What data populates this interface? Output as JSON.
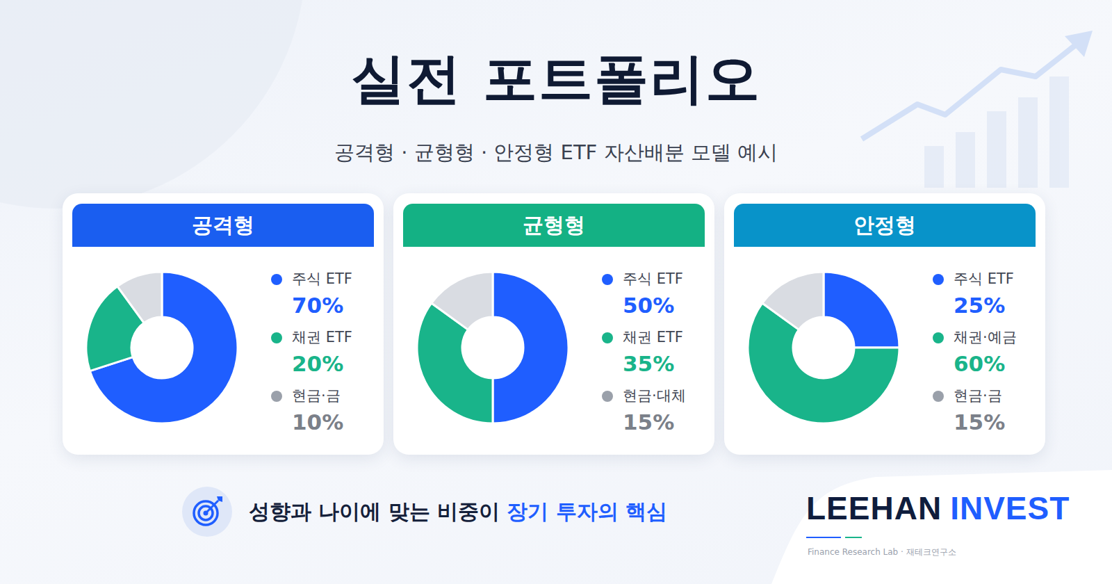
{
  "title": "실전 포트폴리오",
  "subtitle": "공격형 · 균형형 · 안정형 ETF 자산배분 모델 예시",
  "chart_data": [
    {
      "type": "pie",
      "title": "공격형",
      "categories": [
        "주식 ETF",
        "채권 ETF",
        "현금·금"
      ],
      "values": [
        70,
        20,
        10
      ],
      "value_labels": [
        "70%",
        "20%",
        "10%"
      ],
      "colors": [
        "#1f5eff",
        "#19b48a",
        "#d9dce2"
      ],
      "legend": "right"
    },
    {
      "type": "pie",
      "title": "균형형",
      "categories": [
        "주식 ETF",
        "채권 ETF",
        "현금·대체"
      ],
      "values": [
        50,
        35,
        15
      ],
      "value_labels": [
        "50%",
        "35%",
        "15%"
      ],
      "colors": [
        "#1f5eff",
        "#19b48a",
        "#d9dce2"
      ],
      "legend": "right"
    },
    {
      "type": "pie",
      "title": "안정형",
      "categories": [
        "주식 ETF",
        "채권·예금",
        "현금·금"
      ],
      "values": [
        25,
        60,
        15
      ],
      "value_labels": [
        "25%",
        "60%",
        "15%"
      ],
      "colors": [
        "#1f5eff",
        "#19b48a",
        "#d9dce2"
      ],
      "legend": "right"
    }
  ],
  "tagline": {
    "text": "성향과 나이에 맞는 비중이",
    "highlight": "장기 투자의 핵심"
  },
  "brand": {
    "name": "LEEHAN",
    "accent": "INVEST",
    "sub": "Finance Research Lab · 재테크연구소"
  }
}
